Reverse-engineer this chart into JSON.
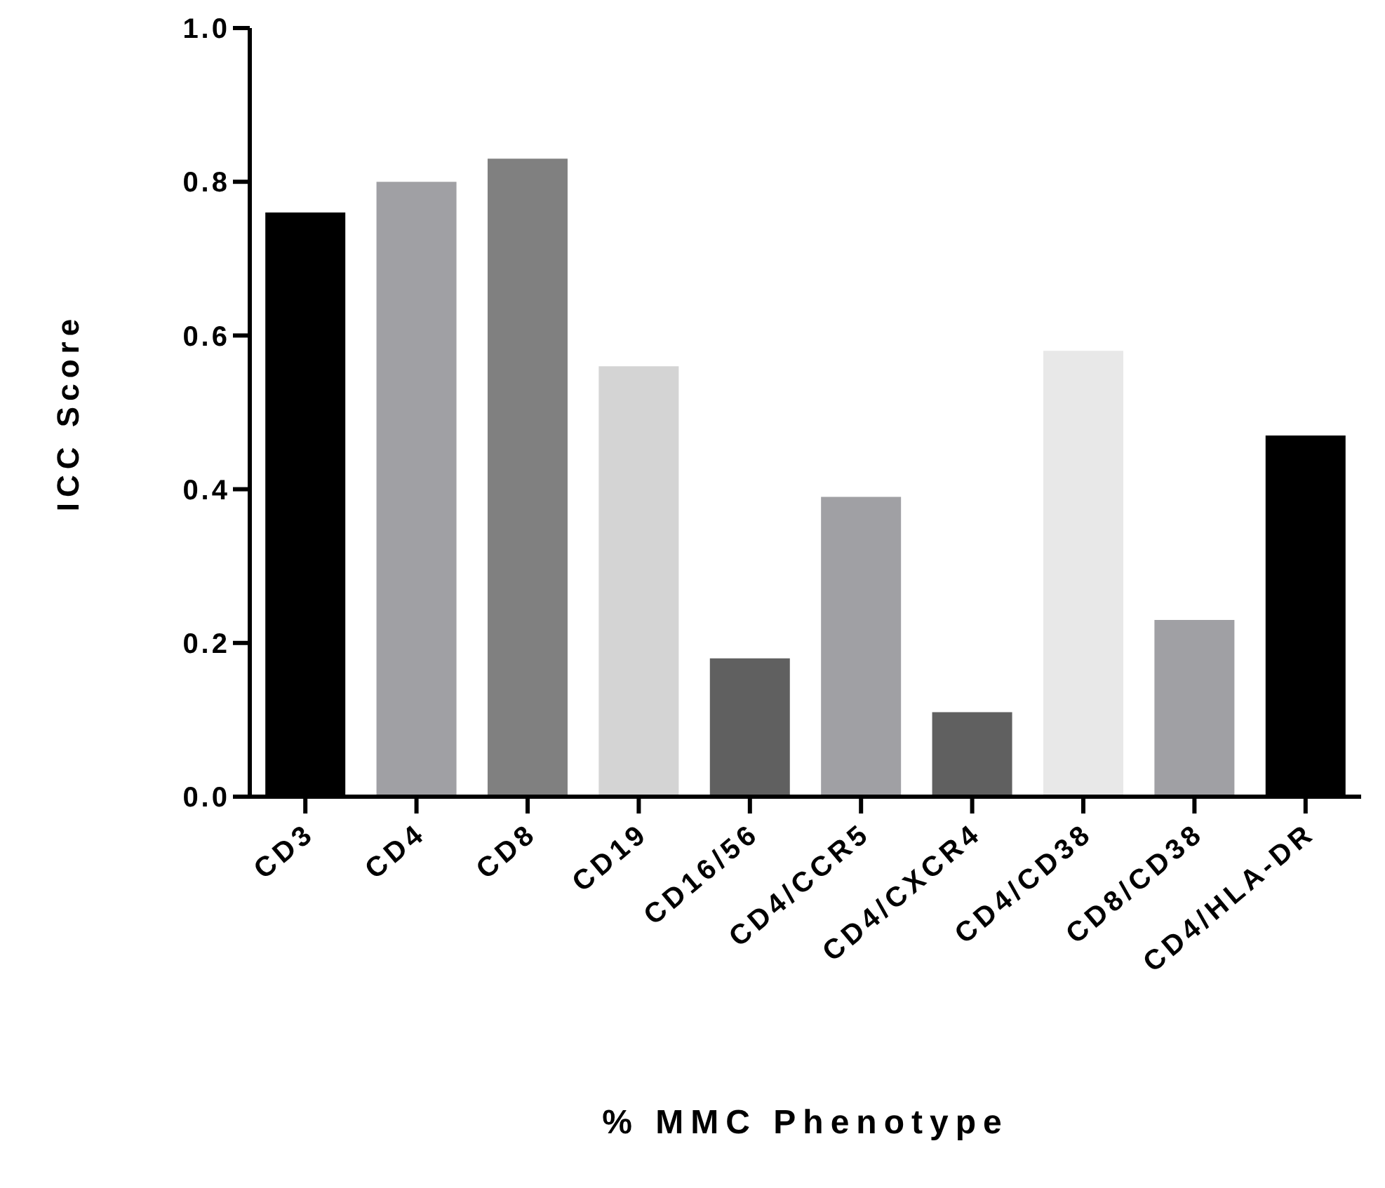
{
  "chart_data": {
    "type": "bar",
    "xlabel": "% MMC Phenotype",
    "ylabel": "ICC Score",
    "categories": [
      "CD3",
      "CD4",
      "CD8",
      "CD19",
      "CD16/56",
      "CD4/CCR5",
      "CD4/CXCR4",
      "CD4/CD38",
      "CD8/CD38",
      "CD4/HLA-DR"
    ],
    "values": [
      0.76,
      0.8,
      0.83,
      0.56,
      0.18,
      0.39,
      0.11,
      0.58,
      0.23,
      0.47
    ],
    "colors": [
      "#000000",
      "#a0a0a4",
      "#808080",
      "#d4d4d4",
      "#606060",
      "#a0a0a4",
      "#606060",
      "#e8e8e8",
      "#a0a0a4",
      "#000000"
    ],
    "ylim": [
      0,
      1
    ],
    "yticks": [
      {
        "value": 0,
        "label": "0.0"
      },
      {
        "value": 0.2,
        "label": "0.2"
      },
      {
        "value": 0.4,
        "label": "0.4"
      },
      {
        "value": 0.6,
        "label": "0.6"
      },
      {
        "value": 0.8,
        "label": "0.8"
      },
      {
        "value": 1,
        "label": "1.0"
      }
    ],
    "grid": false,
    "legend": false
  }
}
